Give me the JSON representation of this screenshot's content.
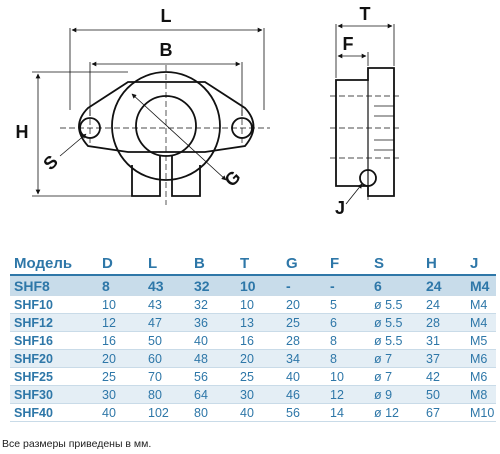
{
  "drawing": {
    "dim_labels": {
      "L": "L",
      "B": "B",
      "H": "H",
      "S": "S",
      "G": "G",
      "T": "T",
      "F": "F",
      "J": "J"
    }
  },
  "table": {
    "headers": [
      "Модель",
      "D",
      "L",
      "B",
      "T",
      "G",
      "F",
      "S",
      "H",
      "J"
    ],
    "highlight_row": [
      "SHF8",
      "8",
      "43",
      "32",
      "10",
      "-",
      "-",
      "6",
      "24",
      "M4"
    ],
    "rows": [
      [
        "SHF10",
        "10",
        "43",
        "32",
        "10",
        "20",
        "5",
        "ø 5.5",
        "24",
        "M4"
      ],
      [
        "SHF12",
        "12",
        "47",
        "36",
        "13",
        "25",
        "6",
        "ø 5.5",
        "28",
        "M4"
      ],
      [
        "SHF16",
        "16",
        "50",
        "40",
        "16",
        "28",
        "8",
        "ø 5.5",
        "31",
        "M5"
      ],
      [
        "SHF20",
        "20",
        "60",
        "48",
        "20",
        "34",
        "8",
        "ø 7",
        "37",
        "M6"
      ],
      [
        "SHF25",
        "25",
        "70",
        "56",
        "25",
        "40",
        "10",
        "ø 7",
        "42",
        "M6"
      ],
      [
        "SHF30",
        "30",
        "80",
        "64",
        "30",
        "46",
        "12",
        "ø 9",
        "50",
        "M8"
      ],
      [
        "SHF40",
        "40",
        "102",
        "80",
        "40",
        "56",
        "14",
        "ø 12",
        "67",
        "M10"
      ]
    ]
  },
  "footnote": "Все размеры приведены в мм.",
  "colors": {
    "header": "#2e77a8",
    "highlight_bg": "#c8dcea",
    "alt_bg": "#e4eef5"
  }
}
